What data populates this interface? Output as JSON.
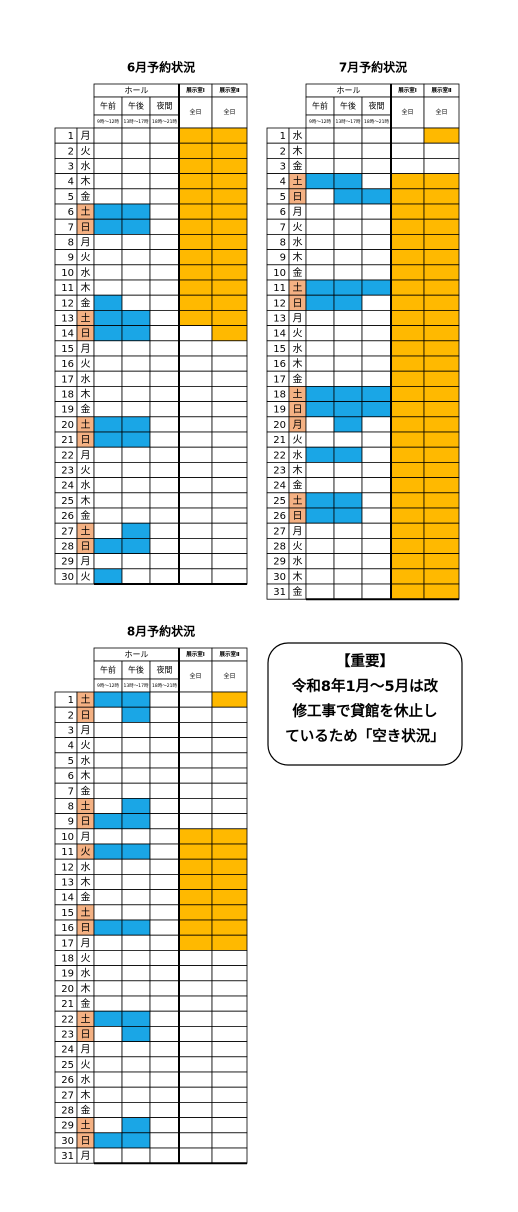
{
  "tables": [
    {
      "title": "6月予約状況",
      "hall": "ホール",
      "sessions": [
        "午前",
        "午後",
        "夜間"
      ],
      "times": [
        "9時～12時",
        "13時～17時",
        "18時～21時"
      ],
      "rooms": [
        "展示室Ⅰ",
        "展示室Ⅱ"
      ],
      "all_day": [
        "全日",
        "全日"
      ],
      "rows": [
        {
          "day": 1,
          "dow": "月",
          "booked": [
            0,
            0,
            0,
            1,
            1
          ]
        },
        {
          "day": 2,
          "dow": "火",
          "booked": [
            0,
            0,
            0,
            1,
            1
          ]
        },
        {
          "day": 3,
          "dow": "水",
          "booked": [
            0,
            0,
            0,
            1,
            1
          ]
        },
        {
          "day": 4,
          "dow": "木",
          "booked": [
            0,
            0,
            0,
            1,
            1
          ]
        },
        {
          "day": 5,
          "dow": "金",
          "booked": [
            0,
            0,
            0,
            1,
            1
          ]
        },
        {
          "day": 6,
          "dow": "土",
          "booked": [
            1,
            1,
            0,
            1,
            1
          ],
          "holiday": 1
        },
        {
          "day": 7,
          "dow": "日",
          "booked": [
            1,
            1,
            0,
            1,
            1
          ],
          "holiday": 1
        },
        {
          "day": 8,
          "dow": "月",
          "booked": [
            0,
            0,
            0,
            1,
            1
          ]
        },
        {
          "day": 9,
          "dow": "火",
          "booked": [
            0,
            0,
            0,
            1,
            1
          ]
        },
        {
          "day": 10,
          "dow": "水",
          "booked": [
            0,
            0,
            0,
            1,
            1
          ]
        },
        {
          "day": 11,
          "dow": "木",
          "booked": [
            0,
            0,
            0,
            1,
            1
          ]
        },
        {
          "day": 12,
          "dow": "金",
          "booked": [
            1,
            0,
            0,
            1,
            1
          ]
        },
        {
          "day": 13,
          "dow": "土",
          "booked": [
            1,
            1,
            0,
            1,
            1
          ],
          "holiday": 1
        },
        {
          "day": 14,
          "dow": "日",
          "booked": [
            1,
            1,
            0,
            0,
            1
          ],
          "holiday": 1
        },
        {
          "day": 15,
          "dow": "月",
          "booked": [
            0,
            0,
            0,
            0,
            0
          ]
        },
        {
          "day": 16,
          "dow": "火",
          "booked": [
            0,
            0,
            0,
            0,
            0
          ]
        },
        {
          "day": 17,
          "dow": "水",
          "booked": [
            0,
            0,
            0,
            0,
            0
          ]
        },
        {
          "day": 18,
          "dow": "木",
          "booked": [
            0,
            0,
            0,
            0,
            0
          ]
        },
        {
          "day": 19,
          "dow": "金",
          "booked": [
            0,
            0,
            0,
            0,
            0
          ]
        },
        {
          "day": 20,
          "dow": "土",
          "booked": [
            1,
            1,
            0,
            0,
            0
          ],
          "holiday": 1
        },
        {
          "day": 21,
          "dow": "日",
          "booked": [
            1,
            1,
            0,
            0,
            0
          ],
          "holiday": 1
        },
        {
          "day": 22,
          "dow": "月",
          "booked": [
            0,
            0,
            0,
            0,
            0
          ]
        },
        {
          "day": 23,
          "dow": "火",
          "booked": [
            0,
            0,
            0,
            0,
            0
          ]
        },
        {
          "day": 24,
          "dow": "水",
          "booked": [
            0,
            0,
            0,
            0,
            0
          ]
        },
        {
          "day": 25,
          "dow": "木",
          "booked": [
            0,
            0,
            0,
            0,
            0
          ]
        },
        {
          "day": 26,
          "dow": "金",
          "booked": [
            0,
            0,
            0,
            0,
            0
          ]
        },
        {
          "day": 27,
          "dow": "土",
          "booked": [
            0,
            1,
            0,
            0,
            0
          ],
          "holiday": 1
        },
        {
          "day": 28,
          "dow": "日",
          "booked": [
            1,
            1,
            0,
            0,
            0
          ],
          "holiday": 1
        },
        {
          "day": 29,
          "dow": "月",
          "booked": [
            0,
            0,
            0,
            0,
            0
          ]
        },
        {
          "day": 30,
          "dow": "火",
          "booked": [
            1,
            0,
            0,
            0,
            0
          ]
        }
      ]
    },
    {
      "title": "7月予約状況",
      "hall": "ホール",
      "sessions": [
        "午前",
        "午後",
        "夜間"
      ],
      "times": [
        "9時～12時",
        "13時～17時",
        "18時～21時"
      ],
      "rooms": [
        "展示室Ⅰ",
        "展示室Ⅱ"
      ],
      "all_day": [
        "全日",
        "全日"
      ],
      "rows": [
        {
          "day": 1,
          "dow": "水",
          "booked": [
            0,
            0,
            0,
            0,
            1
          ]
        },
        {
          "day": 2,
          "dow": "木",
          "booked": [
            0,
            0,
            0,
            0,
            0
          ]
        },
        {
          "day": 3,
          "dow": "金",
          "booked": [
            0,
            0,
            0,
            0,
            0
          ]
        },
        {
          "day": 4,
          "dow": "土",
          "booked": [
            1,
            1,
            0,
            1,
            1
          ],
          "holiday": 1
        },
        {
          "day": 5,
          "dow": "日",
          "booked": [
            0,
            1,
            1,
            1,
            1
          ],
          "holiday": 1
        },
        {
          "day": 6,
          "dow": "月",
          "booked": [
            0,
            0,
            0,
            1,
            1
          ]
        },
        {
          "day": 7,
          "dow": "火",
          "booked": [
            0,
            0,
            0,
            1,
            1
          ]
        },
        {
          "day": 8,
          "dow": "水",
          "booked": [
            0,
            0,
            0,
            1,
            1
          ]
        },
        {
          "day": 9,
          "dow": "木",
          "booked": [
            0,
            0,
            0,
            1,
            1
          ]
        },
        {
          "day": 10,
          "dow": "金",
          "booked": [
            0,
            0,
            0,
            1,
            1
          ]
        },
        {
          "day": 11,
          "dow": "土",
          "booked": [
            1,
            1,
            1,
            1,
            1
          ],
          "holiday": 1
        },
        {
          "day": 12,
          "dow": "日",
          "booked": [
            1,
            1,
            0,
            1,
            1
          ],
          "holiday": 1
        },
        {
          "day": 13,
          "dow": "月",
          "booked": [
            0,
            0,
            0,
            1,
            1
          ]
        },
        {
          "day": 14,
          "dow": "火",
          "booked": [
            0,
            0,
            0,
            1,
            1
          ]
        },
        {
          "day": 15,
          "dow": "水",
          "booked": [
            0,
            0,
            0,
            1,
            1
          ]
        },
        {
          "day": 16,
          "dow": "木",
          "booked": [
            0,
            0,
            0,
            1,
            1
          ]
        },
        {
          "day": 17,
          "dow": "金",
          "booked": [
            0,
            0,
            0,
            1,
            1
          ]
        },
        {
          "day": 18,
          "dow": "土",
          "booked": [
            1,
            1,
            1,
            1,
            1
          ],
          "holiday": 1
        },
        {
          "day": 19,
          "dow": "日",
          "booked": [
            1,
            1,
            1,
            1,
            1
          ],
          "holiday": 1
        },
        {
          "day": 20,
          "dow": "月",
          "booked": [
            0,
            1,
            0,
            1,
            1
          ],
          "holiday": 1
        },
        {
          "day": 21,
          "dow": "火",
          "booked": [
            0,
            0,
            0,
            1,
            1
          ]
        },
        {
          "day": 22,
          "dow": "水",
          "booked": [
            1,
            1,
            0,
            1,
            1
          ]
        },
        {
          "day": 23,
          "dow": "木",
          "booked": [
            0,
            0,
            0,
            1,
            1
          ]
        },
        {
          "day": 24,
          "dow": "金",
          "booked": [
            0,
            0,
            0,
            1,
            1
          ]
        },
        {
          "day": 25,
          "dow": "土",
          "booked": [
            1,
            1,
            0,
            1,
            1
          ],
          "holiday": 1
        },
        {
          "day": 26,
          "dow": "日",
          "booked": [
            1,
            1,
            0,
            1,
            1
          ],
          "holiday": 1
        },
        {
          "day": 27,
          "dow": "月",
          "booked": [
            0,
            0,
            0,
            1,
            1
          ]
        },
        {
          "day": 28,
          "dow": "火",
          "booked": [
            0,
            0,
            0,
            1,
            1
          ]
        },
        {
          "day": 29,
          "dow": "水",
          "booked": [
            0,
            0,
            0,
            1,
            1
          ]
        },
        {
          "day": 30,
          "dow": "木",
          "booked": [
            0,
            0,
            0,
            1,
            1
          ]
        },
        {
          "day": 31,
          "dow": "金",
          "booked": [
            0,
            0,
            0,
            1,
            1
          ]
        }
      ]
    },
    {
      "title": "8月予約状況",
      "hall": "ホール",
      "sessions": [
        "午前",
        "午後",
        "夜間"
      ],
      "times": [
        "9時～12時",
        "13時～17時",
        "18時～21時"
      ],
      "rooms": [
        "展示室Ⅰ",
        "展示室Ⅱ"
      ],
      "all_day": [
        "全日",
        "全日"
      ],
      "rows": [
        {
          "day": 1,
          "dow": "土",
          "booked": [
            1,
            1,
            0,
            0,
            1
          ],
          "holiday": 1
        },
        {
          "day": 2,
          "dow": "日",
          "booked": [
            0,
            1,
            0,
            0,
            0
          ],
          "holiday": 1
        },
        {
          "day": 3,
          "dow": "月",
          "booked": [
            0,
            0,
            0,
            0,
            0
          ]
        },
        {
          "day": 4,
          "dow": "火",
          "booked": [
            0,
            0,
            0,
            0,
            0
          ]
        },
        {
          "day": 5,
          "dow": "水",
          "booked": [
            0,
            0,
            0,
            0,
            0
          ]
        },
        {
          "day": 6,
          "dow": "木",
          "booked": [
            0,
            0,
            0,
            0,
            0
          ]
        },
        {
          "day": 7,
          "dow": "金",
          "booked": [
            0,
            0,
            0,
            0,
            0
          ]
        },
        {
          "day": 8,
          "dow": "土",
          "booked": [
            0,
            1,
            0,
            0,
            0
          ],
          "holiday": 1
        },
        {
          "day": 9,
          "dow": "日",
          "booked": [
            1,
            1,
            0,
            0,
            0
          ],
          "holiday": 1
        },
        {
          "day": 10,
          "dow": "月",
          "booked": [
            0,
            0,
            0,
            1,
            1
          ]
        },
        {
          "day": 11,
          "dow": "火",
          "booked": [
            1,
            1,
            0,
            1,
            1
          ],
          "holiday": 1
        },
        {
          "day": 12,
          "dow": "水",
          "booked": [
            0,
            0,
            0,
            1,
            1
          ]
        },
        {
          "day": 13,
          "dow": "木",
          "booked": [
            0,
            0,
            0,
            1,
            1
          ]
        },
        {
          "day": 14,
          "dow": "金",
          "booked": [
            0,
            0,
            0,
            1,
            1
          ]
        },
        {
          "day": 15,
          "dow": "土",
          "booked": [
            0,
            0,
            0,
            1,
            1
          ],
          "holiday": 1
        },
        {
          "day": 16,
          "dow": "日",
          "booked": [
            1,
            1,
            0,
            1,
            1
          ],
          "holiday": 1
        },
        {
          "day": 17,
          "dow": "月",
          "booked": [
            0,
            0,
            0,
            1,
            1
          ]
        },
        {
          "day": 18,
          "dow": "火",
          "booked": [
            0,
            0,
            0,
            0,
            0
          ]
        },
        {
          "day": 19,
          "dow": "水",
          "booked": [
            0,
            0,
            0,
            0,
            0
          ]
        },
        {
          "day": 20,
          "dow": "木",
          "booked": [
            0,
            0,
            0,
            0,
            0
          ]
        },
        {
          "day": 21,
          "dow": "金",
          "booked": [
            0,
            0,
            0,
            0,
            0
          ]
        },
        {
          "day": 22,
          "dow": "土",
          "booked": [
            1,
            1,
            0,
            0,
            0
          ],
          "holiday": 1
        },
        {
          "day": 23,
          "dow": "日",
          "booked": [
            0,
            1,
            0,
            0,
            0
          ],
          "holiday": 1
        },
        {
          "day": 24,
          "dow": "月",
          "booked": [
            0,
            0,
            0,
            0,
            0
          ]
        },
        {
          "day": 25,
          "dow": "火",
          "booked": [
            0,
            0,
            0,
            0,
            0
          ]
        },
        {
          "day": 26,
          "dow": "水",
          "booked": [
            0,
            0,
            0,
            0,
            0
          ]
        },
        {
          "day": 27,
          "dow": "木",
          "booked": [
            0,
            0,
            0,
            0,
            0
          ]
        },
        {
          "day": 28,
          "dow": "金",
          "booked": [
            0,
            0,
            0,
            0,
            0
          ]
        },
        {
          "day": 29,
          "dow": "土",
          "booked": [
            0,
            1,
            0,
            0,
            0
          ],
          "holiday": 1
        },
        {
          "day": 30,
          "dow": "日",
          "booked": [
            1,
            1,
            0,
            0,
            0
          ],
          "holiday": 1
        },
        {
          "day": 31,
          "dow": "月",
          "booked": [
            0,
            0,
            0,
            0,
            0
          ]
        }
      ]
    }
  ],
  "notice": {
    "title": "【重要】",
    "lines": [
      "令和8年1月～5月は改",
      "修工事で貸館を休止し",
      "ているため「空き状況」"
    ]
  }
}
